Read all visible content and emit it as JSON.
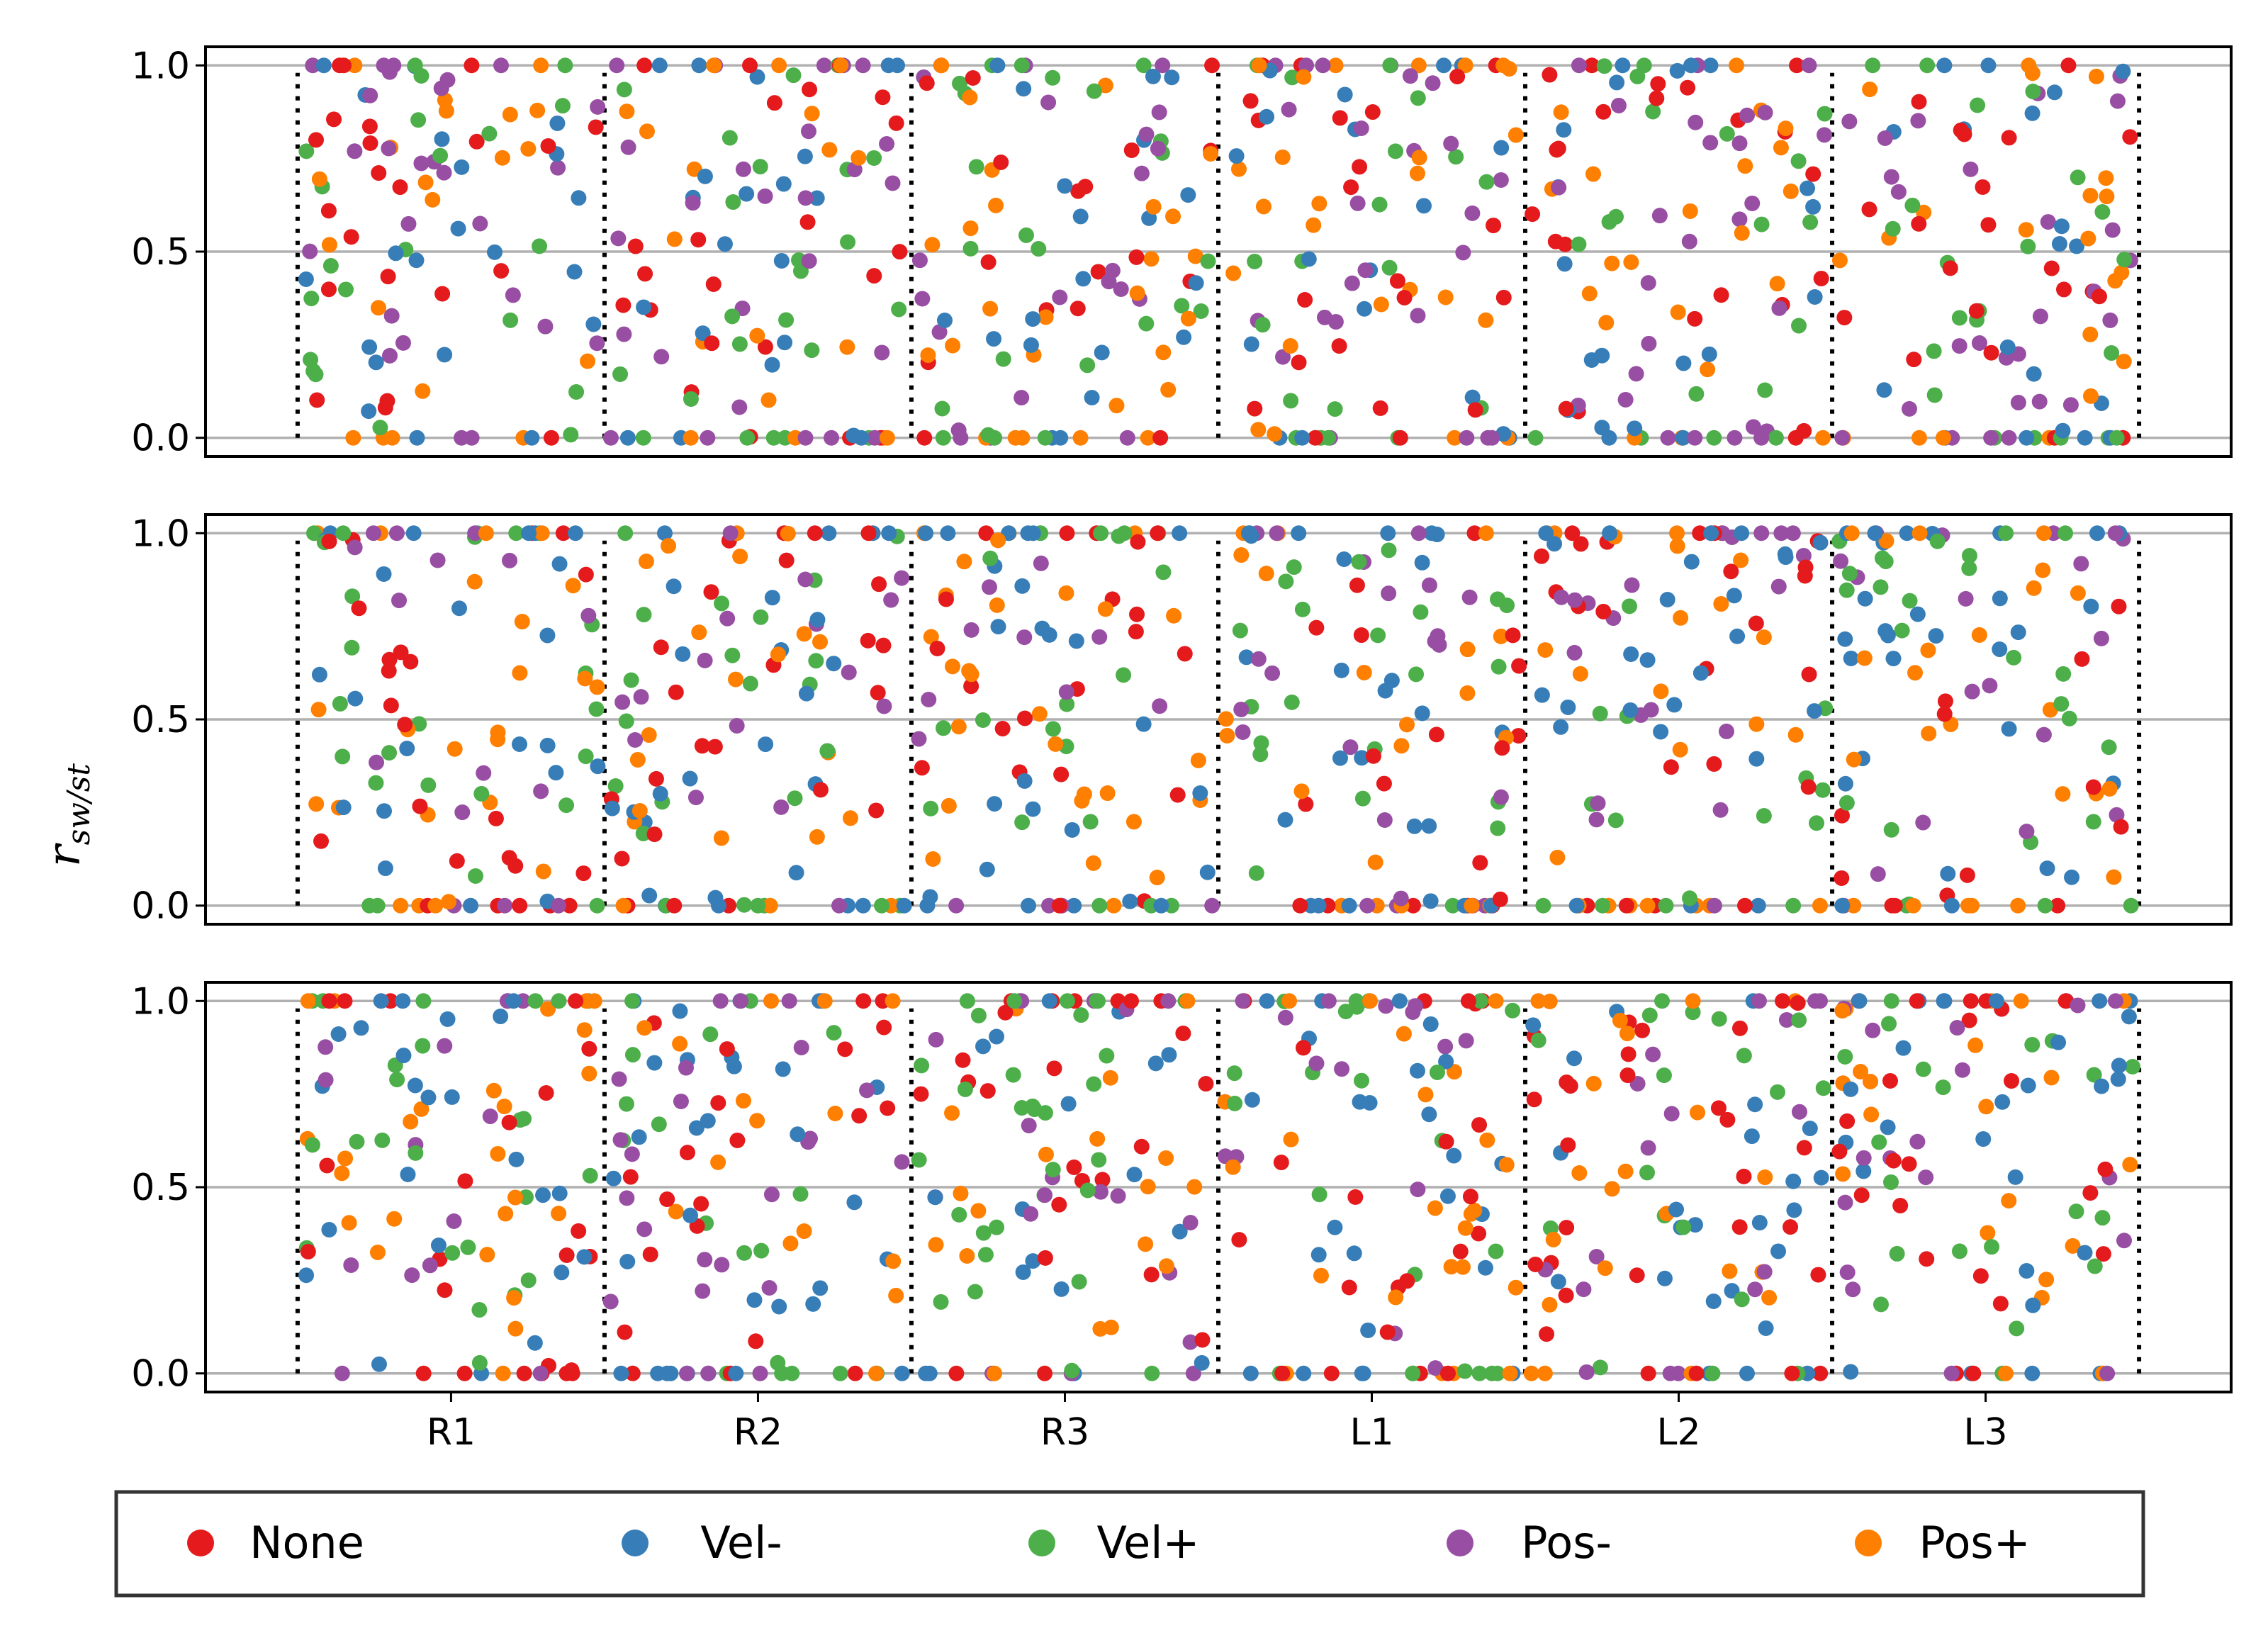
{
  "chart_data": {
    "type": "scatter",
    "ylabel": "r_sw/st",
    "ylabel_text": "r",
    "ylabel_sub": "sw/st",
    "categories": [
      "R1",
      "R2",
      "R3",
      "L1",
      "L2",
      "L3"
    ],
    "ylim": [
      -0.05,
      1.05
    ],
    "yticks": [
      "0.0",
      "0.5",
      "1.0"
    ],
    "ytick_values": [
      0,
      0.5,
      1.0
    ],
    "grid": "horizontal",
    "legend_position": "bottom",
    "panel_count": 3,
    "series": [
      {
        "name": "None",
        "color": "#e41a1c"
      },
      {
        "name": "Vel-",
        "color": "#377eb8"
      },
      {
        "name": "Vel+",
        "color": "#4daf4a"
      },
      {
        "name": "Pos-",
        "color": "#984ea3"
      },
      {
        "name": "Pos+",
        "color": "#ff7f00"
      }
    ]
  }
}
